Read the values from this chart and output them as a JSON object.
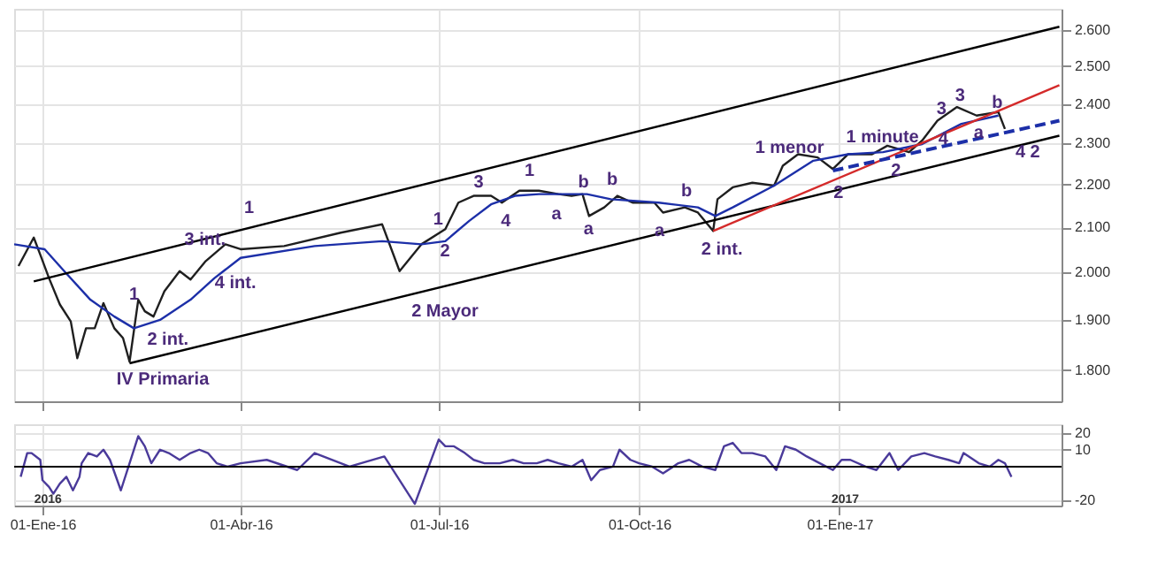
{
  "chart_data": [
    {
      "type": "line",
      "xlim": [
        "2015-12-19",
        "2017-04-13"
      ],
      "ylim": [
        1740,
        2660
      ],
      "log": "y",
      "grid": true,
      "tick_labels": "y",
      "xticks": [
        {
          "value": "2016-01-01",
          "label": null
        },
        {
          "value": "2016-04-01",
          "label": null
        },
        {
          "value": "2016-07-01",
          "label": null
        },
        {
          "value": "2016-10-01",
          "label": null
        },
        {
          "value": "2017-01-01",
          "label": null
        }
      ],
      "yticks": [
        {
          "value": 1800,
          "label": "1.800"
        },
        {
          "value": 1900,
          "label": "1.900"
        },
        {
          "value": 2000,
          "label": "2.000"
        },
        {
          "value": 2100,
          "label": "2.100"
        },
        {
          "value": 2200,
          "label": "2.200"
        },
        {
          "value": 2300,
          "label": "2.300"
        },
        {
          "value": 2400,
          "label": "2.400"
        },
        {
          "value": 2500,
          "label": "2.500"
        },
        {
          "value": 2600,
          "label": "2.600"
        }
      ],
      "series": [
        {
          "color": "#1f1f1f",
          "x": [
            "2015-12-21",
            "2015-12-28",
            "2015-12-31",
            "2016-01-04",
            "2016-01-09",
            "2016-01-14",
            "2016-01-17",
            "2016-01-21",
            "2016-01-25",
            "2016-01-29",
            "2016-02-03",
            "2016-02-07",
            "2016-02-10",
            "2016-02-14",
            "2016-02-17",
            "2016-02-21",
            "2016-02-26",
            "2016-03-04",
            "2016-03-09",
            "2016-03-16",
            "2016-03-25",
            "2016-04-01",
            "2016-04-21",
            "2016-05-17",
            "2016-06-05",
            "2016-06-13",
            "2016-06-23",
            "2016-07-04",
            "2016-07-10",
            "2016-07-17",
            "2016-07-25",
            "2016-07-30",
            "2016-08-07",
            "2016-08-16",
            "2016-08-25",
            "2016-08-31",
            "2016-09-05",
            "2016-09-08",
            "2016-09-15",
            "2016-09-21",
            "2016-09-28",
            "2016-10-08",
            "2016-10-12",
            "2016-10-22",
            "2016-10-28",
            "2016-11-04",
            "2016-11-06",
            "2016-11-13",
            "2016-11-22",
            "2016-12-02",
            "2016-12-06",
            "2016-12-13",
            "2016-12-22",
            "2016-12-29",
            "2017-01-05",
            "2017-01-16",
            "2017-01-23",
            "2017-02-02",
            "2017-02-08",
            "2017-02-15",
            "2017-02-24",
            "2017-03-05",
            "2017-03-15",
            "2017-03-18"
          ],
          "values": [
            2014,
            2077,
            2039,
            1988,
            1932,
            1897,
            1823,
            1883,
            1883,
            1935,
            1883,
            1863,
            1816,
            1942,
            1918,
            1907,
            1960,
            2003,
            1985,
            2025,
            2062,
            2051,
            2058,
            2088,
            2107,
            2003,
            2062,
            2096,
            2157,
            2173,
            2173,
            2157,
            2185,
            2185,
            2177,
            2173,
            2177,
            2126,
            2146,
            2173,
            2157,
            2157,
            2134,
            2146,
            2134,
            2092,
            2165,
            2193,
            2204,
            2197,
            2245,
            2273,
            2265,
            2237,
            2273,
            2273,
            2294,
            2278,
            2307,
            2357,
            2392,
            2370,
            2379,
            2336
          ]
        },
        {
          "color": "#1c2fa8",
          "x": [
            "2015-12-19",
            "2016-01-02",
            "2016-01-11",
            "2016-01-23",
            "2016-02-03",
            "2016-02-12",
            "2016-02-24",
            "2016-03-09",
            "2016-03-20",
            "2016-04-01",
            "2016-05-05",
            "2016-06-05",
            "2016-06-23",
            "2016-07-04",
            "2016-07-15",
            "2016-07-25",
            "2016-08-05",
            "2016-08-16",
            "2016-08-27",
            "2016-09-07",
            "2016-09-18",
            "2016-10-10",
            "2016-10-28",
            "2016-11-05",
            "2016-11-13",
            "2016-12-02",
            "2016-12-20",
            "2017-01-05",
            "2017-01-21",
            "2017-02-08",
            "2017-02-26",
            "2017-03-15"
          ],
          "values": [
            2062,
            2051,
            2003,
            1942,
            1907,
            1883,
            1900,
            1942,
            1988,
            2032,
            2058,
            2069,
            2062,
            2069,
            2115,
            2153,
            2173,
            2177,
            2177,
            2177,
            2165,
            2157,
            2146,
            2126,
            2146,
            2197,
            2257,
            2273,
            2278,
            2298,
            2349,
            2370
          ]
        },
        {
          "color": "#000000",
          "x": [
            "2015-12-28",
            "2017-04-12"
          ],
          "values": [
            1981,
            2609
          ]
        },
        {
          "color": "#000000",
          "x": [
            "2016-02-10",
            "2017-04-12"
          ],
          "values": [
            1813,
            2319
          ]
        },
        {
          "color": "#d42a2a",
          "x": [
            "2016-11-04",
            "2017-04-12"
          ],
          "values": [
            2092,
            2449
          ]
        },
        {
          "color": "#1c2fa8",
          "line_style": "dashed",
          "x": [
            "2016-12-29",
            "2017-04-12"
          ],
          "values": [
            2233,
            2357
          ]
        }
      ],
      "annotations": [
        "1",
        "3 int.",
        "4 int.",
        "1",
        "2 int.",
        "IV Primaria",
        "2 Mayor",
        "1",
        "2",
        "3",
        "4",
        "1",
        "a",
        "b",
        "a",
        "b",
        "a",
        "b",
        "2 int.",
        "1 menor",
        "2",
        "1 minute",
        "2",
        "3",
        "3",
        "4",
        "a",
        "b",
        "4 2"
      ]
    },
    {
      "type": "line",
      "xlim": [
        "2015-12-19",
        "2017-04-13"
      ],
      "ylim": [
        -23,
        25
      ],
      "grid": true,
      "xticks": [
        {
          "value": "2016-01-01",
          "label": "01-Ene-16"
        },
        {
          "value": "2016-04-01",
          "label": "01-Abr-16"
        },
        {
          "value": "2016-07-01",
          "label": "01-Jul-16"
        },
        {
          "value": "2016-10-01",
          "label": "01-Oct-16"
        },
        {
          "value": "2017-01-01",
          "label": "01-Ene-17"
        }
      ],
      "yticks": [
        -20,
        10,
        20
      ],
      "ref_lines": [
        {
          "axis": "y",
          "value": 0,
          "color": "#000000"
        }
      ],
      "series": [
        {
          "color": "#4a3a9a",
          "x": [
            "2015-12-22",
            "2015-12-25",
            "2015-12-27",
            "2015-12-31",
            "2016-01-01",
            "2016-01-04",
            "2016-01-06",
            "2016-01-09",
            "2016-01-12",
            "2016-01-15",
            "2016-01-18",
            "2016-01-19",
            "2016-01-22",
            "2016-01-26",
            "2016-01-29",
            "2016-02-01",
            "2016-02-06",
            "2016-02-10",
            "2016-02-14",
            "2016-02-17",
            "2016-02-20",
            "2016-02-24",
            "2016-02-28",
            "2016-03-04",
            "2016-03-09",
            "2016-03-13",
            "2016-03-17",
            "2016-03-21",
            "2016-03-26",
            "2016-04-01",
            "2016-04-13",
            "2016-04-27",
            "2016-05-05",
            "2016-05-21",
            "2016-06-06",
            "2016-06-20",
            "2016-07-01",
            "2016-07-04",
            "2016-07-08",
            "2016-07-13",
            "2016-07-17",
            "2016-07-22",
            "2016-07-29",
            "2016-08-04",
            "2016-08-09",
            "2016-08-15",
            "2016-08-20",
            "2016-08-25",
            "2016-08-31",
            "2016-09-05",
            "2016-09-09",
            "2016-09-13",
            "2016-09-19",
            "2016-09-22",
            "2016-09-27",
            "2016-10-01",
            "2016-10-07",
            "2016-10-12",
            "2016-10-19",
            "2016-10-24",
            "2016-10-30",
            "2016-11-05",
            "2016-11-09",
            "2016-11-13",
            "2016-11-17",
            "2016-11-22",
            "2016-11-28",
            "2016-12-03",
            "2016-12-07",
            "2016-12-12",
            "2016-12-17",
            "2016-12-23",
            "2016-12-29",
            "2017-01-02",
            "2017-01-06",
            "2017-01-13",
            "2017-01-18",
            "2017-01-24",
            "2017-01-28",
            "2017-02-03",
            "2017-02-09",
            "2017-02-14",
            "2017-02-20",
            "2017-02-25",
            "2017-02-27",
            "2017-03-06",
            "2017-03-11",
            "2017-03-15",
            "2017-03-18",
            "2017-03-21"
          ],
          "values": [
            -6,
            8,
            8,
            4,
            -8,
            -12,
            -16,
            -10,
            -6,
            -14,
            -6,
            2,
            8,
            6,
            10,
            4,
            -14,
            2,
            18,
            12,
            2,
            10,
            8,
            4,
            8,
            10,
            8,
            2,
            0,
            2,
            4,
            -2,
            8,
            0,
            6,
            -22,
            16,
            12,
            12,
            8,
            4,
            2,
            2,
            4,
            2,
            2,
            4,
            2,
            0,
            4,
            -8,
            -2,
            0,
            10,
            4,
            2,
            0,
            -4,
            2,
            4,
            0,
            -2,
            12,
            14,
            8,
            8,
            6,
            -2,
            12,
            10,
            6,
            2,
            -2,
            4,
            4,
            0,
            -2,
            8,
            -2,
            6,
            8,
            6,
            4,
            2,
            8,
            2,
            0,
            4,
            2,
            -6
          ]
        }
      ],
      "annotations": [
        "2016",
        "2017"
      ]
    }
  ]
}
